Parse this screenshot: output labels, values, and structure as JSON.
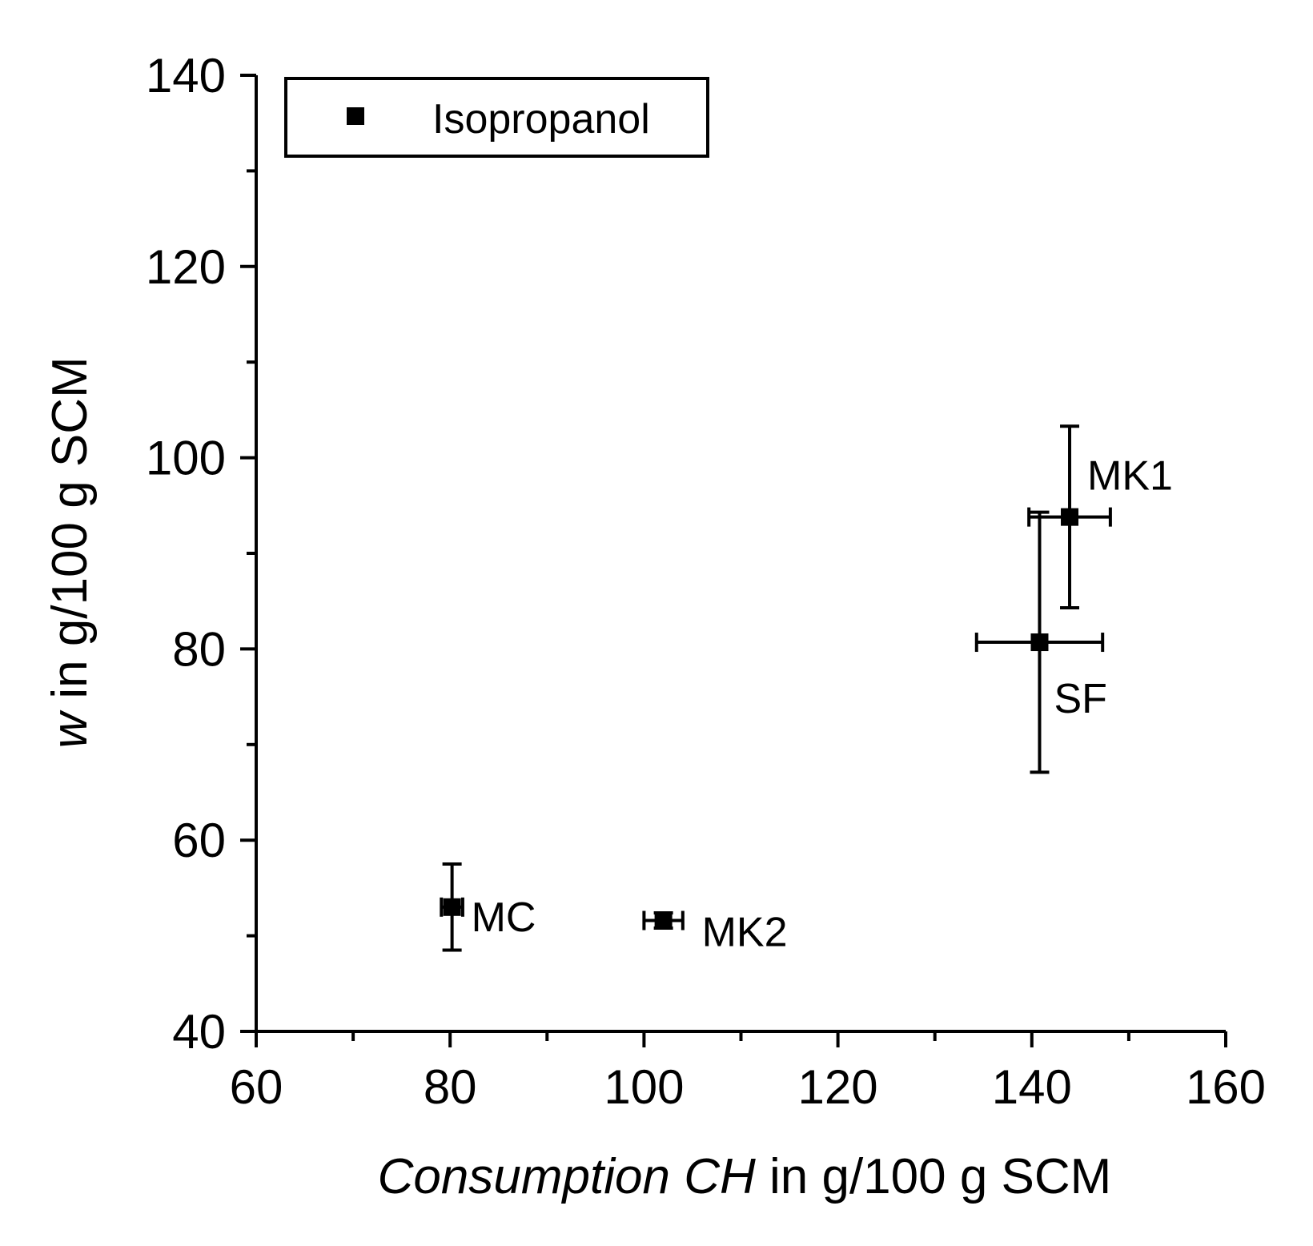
{
  "chart_data": {
    "type": "scatter",
    "xlabel_italic": "Consumption CH",
    "xlabel_rest": " in g/100 g SCM",
    "ylabel_italic": "w",
    "ylabel_rest": " in g/100 g SCM",
    "xlim": [
      60,
      160
    ],
    "ylim": [
      40,
      140
    ],
    "x_ticks": [
      60,
      80,
      100,
      120,
      140,
      160
    ],
    "y_ticks": [
      40,
      60,
      80,
      100,
      120,
      140
    ],
    "x_tick_labels": [
      "60",
      "80",
      "100",
      "120",
      "140",
      "160"
    ],
    "y_tick_labels": [
      "40",
      "60",
      "80",
      "100",
      "120",
      "140"
    ],
    "grid": false,
    "legend_placement": "top-left",
    "series": [
      {
        "name": "Isopropanol",
        "color": "#000000",
        "marker": "square",
        "points": [
          {
            "label": "MC",
            "x": 80.2,
            "y": 53.0,
            "xerr": 1.1,
            "yerr": 4.5
          },
          {
            "label": "MK2",
            "x": 102.0,
            "y": 51.6,
            "xerr": 2.0,
            "yerr": 0.8
          },
          {
            "label": "SF",
            "x": 140.8,
            "y": 80.7,
            "xerr": 6.5,
            "yerr": 13.6
          },
          {
            "label": "MK1",
            "x": 143.9,
            "y": 93.8,
            "xerr": 4.2,
            "yerr": 9.5
          }
        ]
      }
    ]
  }
}
